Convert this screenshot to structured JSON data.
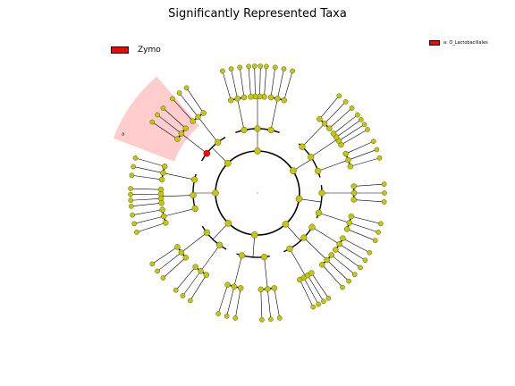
{
  "title": "Significantly Represented Taxa",
  "legend_left": {
    "label": "Zymo",
    "color": "#ff0000"
  },
  "legend_right": {
    "label": "a: O_Lactobacillales",
    "color": "#ff0000"
  },
  "highlight": {
    "clade_label": "a",
    "color": "#ffc8c8",
    "center_node_color": "#ff0000"
  },
  "node_color": "#c8c800",
  "edge_color": "#000000",
  "tree": {
    "phyla": [
      {
        "a": 90,
        "span": 40,
        "classes": [
          {
            "a": 78,
            "n": 3
          },
          {
            "a": 90,
            "n": 4
          },
          {
            "a": 102,
            "n": 3
          }
        ]
      },
      {
        "a": 135,
        "span": 30,
        "classes": [
          {
            "a": 128,
            "n": 3
          },
          {
            "a": 142,
            "n": 3
          }
        ]
      },
      {
        "a": 180,
        "span": 34,
        "classes": [
          {
            "a": 168,
            "n": 3
          },
          {
            "a": 182,
            "n": 4
          },
          {
            "a": 194,
            "n": 3
          }
        ]
      },
      {
        "a": 226,
        "span": 30,
        "classes": [
          {
            "a": 218,
            "n": 3
          },
          {
            "a": 234,
            "n": 3
          }
        ]
      },
      {
        "a": 266,
        "span": 30,
        "classes": [
          {
            "a": 256,
            "n": 3
          },
          {
            "a": 276,
            "n": 3
          }
        ]
      },
      {
        "a": 312,
        "span": 36,
        "classes": [
          {
            "a": 300,
            "n": 4
          },
          {
            "a": 316,
            "n": 3
          },
          {
            "a": 328,
            "n": 3
          }
        ]
      },
      {
        "a": 352,
        "span": 30,
        "classes": [
          {
            "a": 342,
            "n": 3
          },
          {
            "a": 360,
            "n": 3
          }
        ]
      },
      {
        "a": 32,
        "span": 36,
        "classes": [
          {
            "a": 20,
            "n": 3
          },
          {
            "a": 34,
            "n": 4
          },
          {
            "a": 46,
            "n": 3
          }
        ]
      }
    ],
    "highlight_angle": 145
  }
}
